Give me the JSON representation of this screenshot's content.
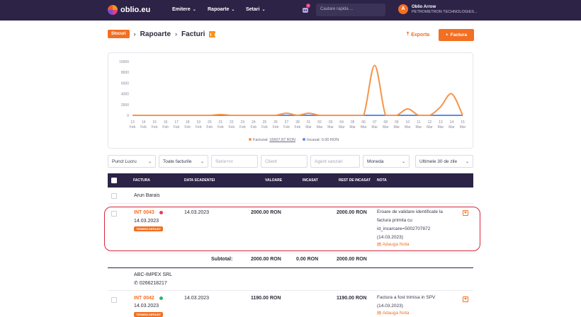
{
  "topbar": {
    "logo_text": "oblio.eu",
    "nav": [
      {
        "label": "Emitere"
      },
      {
        "label": "Rapoarte"
      },
      {
        "label": "Setari"
      }
    ],
    "notification_count": "1",
    "search_placeholder": "Cautare rapida ...",
    "user_initial": "A",
    "user_name": "Oblio Arrow",
    "user_company": "PETROMETRON TECHNOLOGIES..."
  },
  "breadcrumb": {
    "stocuri": "Stocuri",
    "items": [
      "Rapoarte",
      "Facturi"
    ]
  },
  "actions": {
    "export": "Exporta",
    "factura": "Factura"
  },
  "chart_data": {
    "type": "line",
    "x": [
      "13 Feb",
      "14 Feb",
      "15 Feb",
      "16 Feb",
      "17 Feb",
      "18 Feb",
      "19 Feb",
      "20 Feb",
      "21 Feb",
      "22 Feb",
      "23 Feb",
      "24 Feb",
      "25 Feb",
      "26 Feb",
      "27 Feb",
      "28 Feb",
      "01 Mar",
      "02 Mar",
      "03 Mar",
      "04 Mar",
      "05 Mar",
      "06 Mar",
      "07 Mar",
      "08 Mar",
      "09 Mar",
      "10 Mar",
      "11 Mar",
      "12 Mar",
      "13 Mar",
      "14 Mar",
      "15 Mar"
    ],
    "x_ticks": [
      {
        "day": "13",
        "month": "Feb"
      },
      {
        "day": "14",
        "month": "Feb"
      },
      {
        "day": "15",
        "month": "Feb"
      },
      {
        "day": "16",
        "month": "Feb"
      },
      {
        "day": "17",
        "month": "Feb"
      },
      {
        "day": "18",
        "month": "Feb"
      },
      {
        "day": "19",
        "month": "Feb"
      },
      {
        "day": "20",
        "month": "Feb"
      },
      {
        "day": "21",
        "month": "Feb"
      },
      {
        "day": "22",
        "month": "Feb"
      },
      {
        "day": "23",
        "month": "Feb"
      },
      {
        "day": "24",
        "month": "Feb"
      },
      {
        "day": "25",
        "month": "Feb"
      },
      {
        "day": "26",
        "month": "Feb"
      },
      {
        "day": "27",
        "month": "Feb"
      },
      {
        "day": "28",
        "month": "Feb"
      },
      {
        "day": "01",
        "month": "Mar"
      },
      {
        "day": "02",
        "month": "Mar"
      },
      {
        "day": "03",
        "month": "Mar"
      },
      {
        "day": "04",
        "month": "Mar"
      },
      {
        "day": "05",
        "month": "Mar"
      },
      {
        "day": "06",
        "month": "Mar"
      },
      {
        "day": "07",
        "month": "Mar"
      },
      {
        "day": "08",
        "month": "Mar"
      },
      {
        "day": "09",
        "month": "Mar"
      },
      {
        "day": "10",
        "month": "Mar"
      },
      {
        "day": "11",
        "month": "Mar"
      },
      {
        "day": "12",
        "month": "Mar"
      },
      {
        "day": "13",
        "month": "Mar"
      },
      {
        "day": "14",
        "month": "Mar"
      },
      {
        "day": "15",
        "month": "Mar"
      }
    ],
    "y_ticks": [
      "10000",
      "8000",
      "6000",
      "4000",
      "2000",
      "0"
    ],
    "ylim": [
      0,
      10000
    ],
    "series": [
      {
        "name": "Facturat: 16607.87 RON",
        "color": "#f7944a",
        "values": [
          0,
          0,
          0,
          0,
          0,
          0,
          0,
          0,
          150,
          0,
          0,
          0,
          0,
          0,
          400,
          0,
          400,
          0,
          0,
          0,
          0,
          0,
          9300,
          0,
          0,
          1200,
          0,
          0,
          1600,
          4000,
          0
        ]
      },
      {
        "name": "Incasat: 0.00 RON",
        "color": "#5b8def",
        "values": [
          0,
          0,
          0,
          0,
          0,
          0,
          0,
          0,
          0,
          0,
          0,
          0,
          0,
          0,
          0,
          0,
          0,
          0,
          0,
          0,
          0,
          0,
          0,
          0,
          0,
          0,
          0,
          0,
          0,
          0,
          0
        ]
      }
    ],
    "legend_position": "bottom-left",
    "grid": false
  },
  "legend": {
    "facturat_label": "Facturat: ",
    "facturat_value": "16607.87 RON",
    "incasat": "Incasat: 0.00 RON",
    "facturat_color": "#f7944a",
    "incasat_color": "#5b8def"
  },
  "filters": {
    "punct_lucru": "Punct Lucru",
    "tip_facturi": "Toate facturile",
    "serie_nr": "Serie+nr",
    "client": "Client",
    "agent": "Agent vanzari",
    "moneda": "Moneda",
    "perioada": "Ultimele 30 de zile"
  },
  "table": {
    "headers": {
      "factura": "FACTURA",
      "data_scadenta": "DATA SCADENTEI",
      "valoare": "VALOARE",
      "incasat": "INCASAT",
      "rest": "REST DE INCASAT",
      "nota": "NOTA"
    },
    "groups": [
      {
        "client": "Arun Barais",
        "invoice": {
          "number": "INT 0043",
          "status_color": "#e0405a",
          "date": "14.03.2023",
          "badge": "TERMEN DEPASIT",
          "due": "14.03.2023",
          "valoare": "2000.00 RON",
          "rest": "2000.00 RON",
          "note_lines": [
            "Eroare de validare identificate la",
            "factura primita cu",
            "id_incarcare=5002707872",
            "(14.03.2023)"
          ],
          "note_link": "Adauga Nota"
        },
        "subtotal": {
          "label": "Subtotal:",
          "valoare": "2000.00 RON",
          "incasat": "0.00 RON",
          "rest": "2000.00 RON"
        }
      },
      {
        "client": "ABC-IMPEX SRL",
        "phone": "0266218217",
        "invoice": {
          "number": "INT 0042",
          "status_color": "#2bb673",
          "date": "14.03.2023",
          "badge": "TERMEN DEPASIT",
          "due": "14.03.2023",
          "valoare": "1190.00 RON",
          "rest": "1190.00 RON",
          "note_lines": [
            "Factura a fost trimisa in SPV",
            "(14.03.2023)"
          ],
          "note_link": "Adauga Nota"
        }
      }
    ]
  }
}
